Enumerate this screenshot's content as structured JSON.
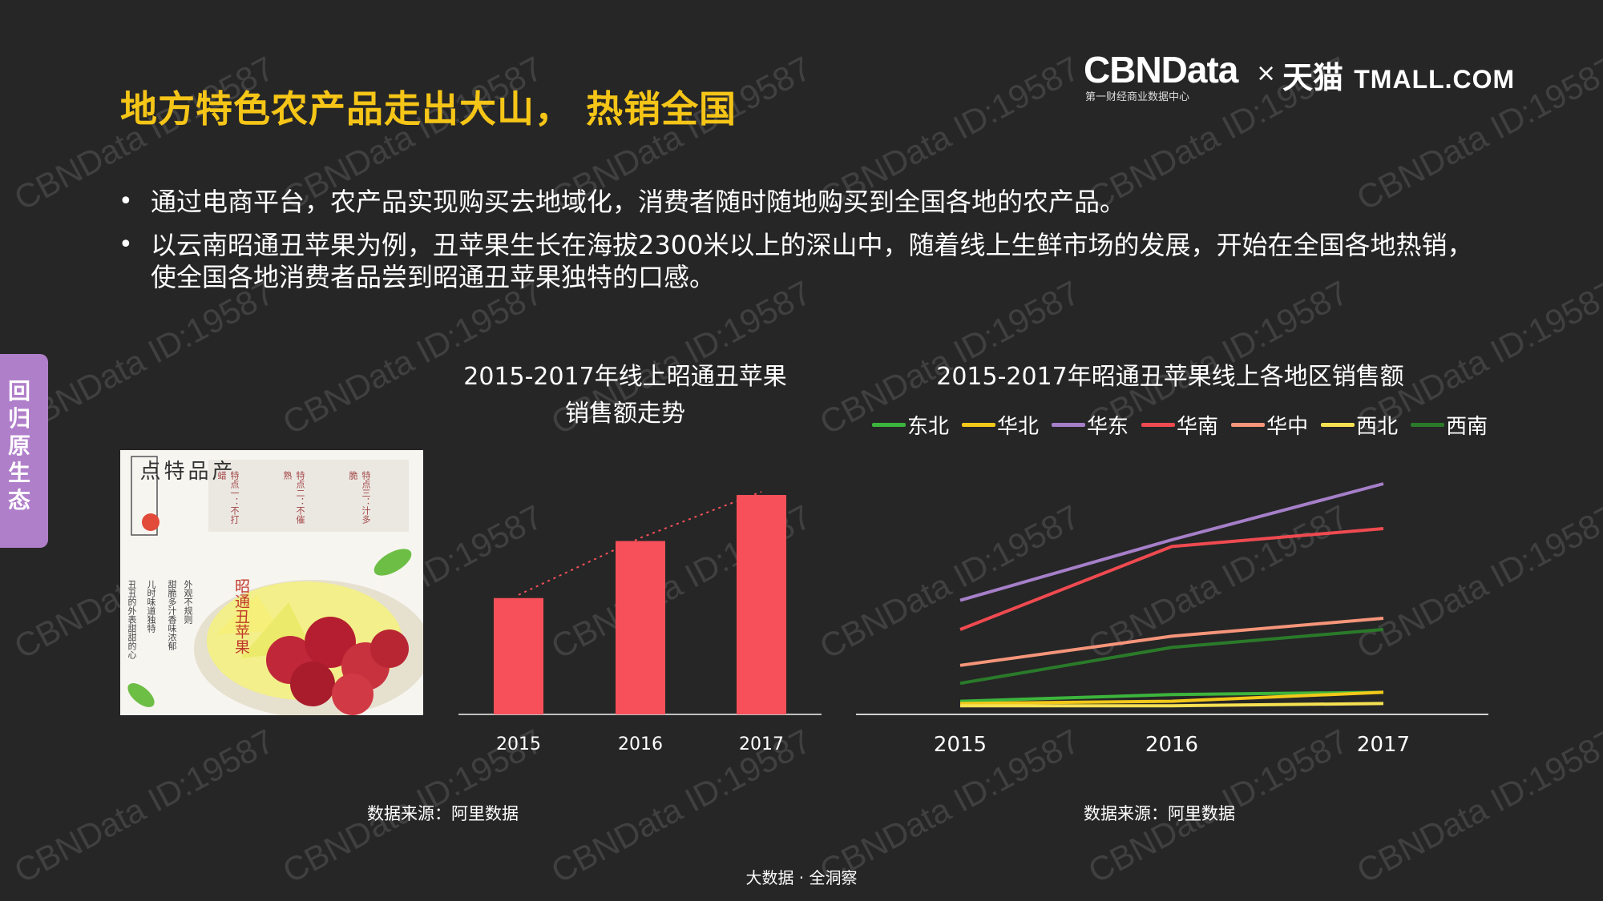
{
  "header": {
    "title": "地方特色农产品走出大山， 热销全国",
    "logo_brand": "CBNData",
    "logo_sub": "第一财经商业数据中心",
    "logo_times": "×",
    "logo_tmall_cn": "天猫",
    "logo_tmall_en": "TMALL.COM"
  },
  "bullets": [
    "通过电商平台，农产品实现购买去地域化，消费者随时随地购买到全国各地的农产品。",
    "以云南昭通丑苹果为例，丑苹果生长在海拔2300米以上的深山中，随着线上生鲜市场的发展，开始在全国各地热销，使全国各地消费者品尝到昭通丑苹果独特的口感。"
  ],
  "side_tab": "回归原生态",
  "watermark": "CBNData ID:19587",
  "photo": {
    "heading": "产品特点",
    "features": [
      "特点一：不打蜡",
      "特点二：不催熟",
      "特点三：汁多脆"
    ],
    "desc_cols": [
      "外观不规则",
      "甜脆多汁香味浓郁",
      "儿时味道独特",
      "丑丑的外表甜甜的心"
    ],
    "product": "昭通丑苹果"
  },
  "chart_data": [
    {
      "type": "bar",
      "title": "2015-2017年线上昭通丑苹果销售额走势",
      "title_lines": [
        "2015-2017年线上昭通丑苹果",
        "销售额走势"
      ],
      "categories": [
        "2015",
        "2016",
        "2017"
      ],
      "values": [
        53,
        79,
        100
      ],
      "ylim": [
        0,
        100
      ],
      "trend_line": "dotted",
      "color": "#f7505a",
      "source": "数据来源：阿里数据"
    },
    {
      "type": "line",
      "title": "2015-2017年昭通丑苹果线上各地区销售额",
      "x": [
        "2015",
        "2016",
        "2017"
      ],
      "ylim": [
        0,
        100
      ],
      "legend_position": "top",
      "series": [
        {
          "name": "东北",
          "color": "#3cb53c",
          "values": [
            3,
            6,
            7
          ]
        },
        {
          "name": "华北",
          "color": "#f2c81a",
          "values": [
            2,
            3,
            7
          ]
        },
        {
          "name": "华东",
          "color": "#a67fc9",
          "values": [
            48,
            75,
            100
          ]
        },
        {
          "name": "华南",
          "color": "#ef4a50",
          "values": [
            35,
            72,
            80
          ]
        },
        {
          "name": "华中",
          "color": "#f6957a",
          "values": [
            19,
            32,
            40
          ]
        },
        {
          "name": "西北",
          "color": "#f5e052",
          "values": [
            1,
            1,
            2
          ]
        },
        {
          "name": "西南",
          "color": "#2a7a2a",
          "values": [
            11,
            27,
            35
          ]
        }
      ],
      "source": "数据来源：阿里数据"
    }
  ],
  "footer": "大数据 · 全洞察"
}
